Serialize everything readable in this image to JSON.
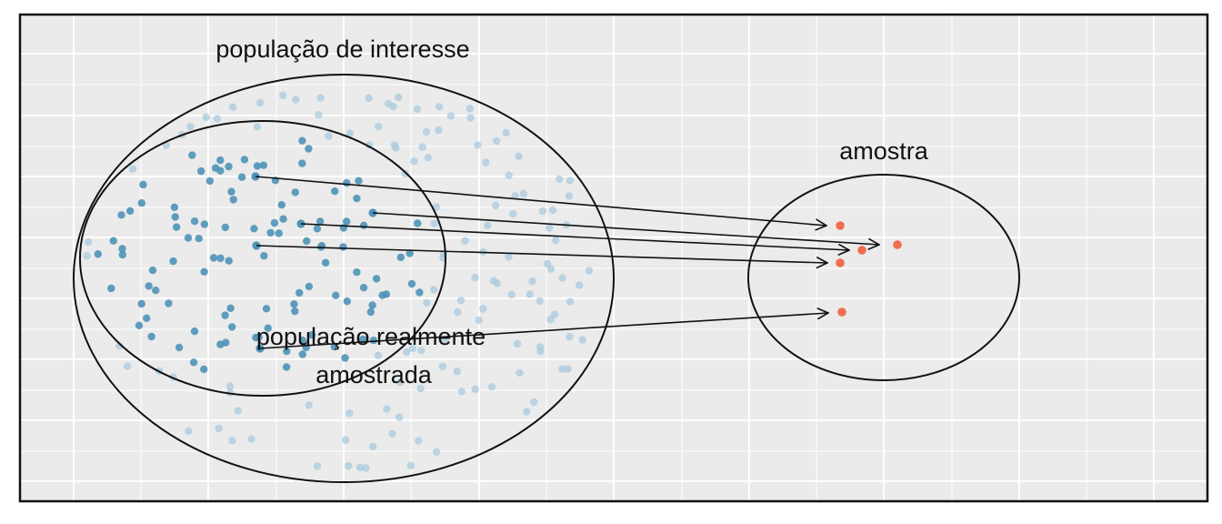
{
  "labels": {
    "population_of_interest": "população de interesse",
    "sampled_population_line1": "população realmente",
    "sampled_population_line2": "amostrada",
    "sample": "amostra"
  },
  "colors": {
    "panel_background": "#ebebeb",
    "grid": "#ffffff",
    "border": "#111111",
    "outline": "#111111",
    "sampled_point": "#4f93b8",
    "unsampled_point": "#a9cade",
    "sample_point": "#f26d4f",
    "arrow": "#111111"
  },
  "counts": {
    "sampled_population_points": 110,
    "other_population_points": 130,
    "sample_points": 5
  }
}
